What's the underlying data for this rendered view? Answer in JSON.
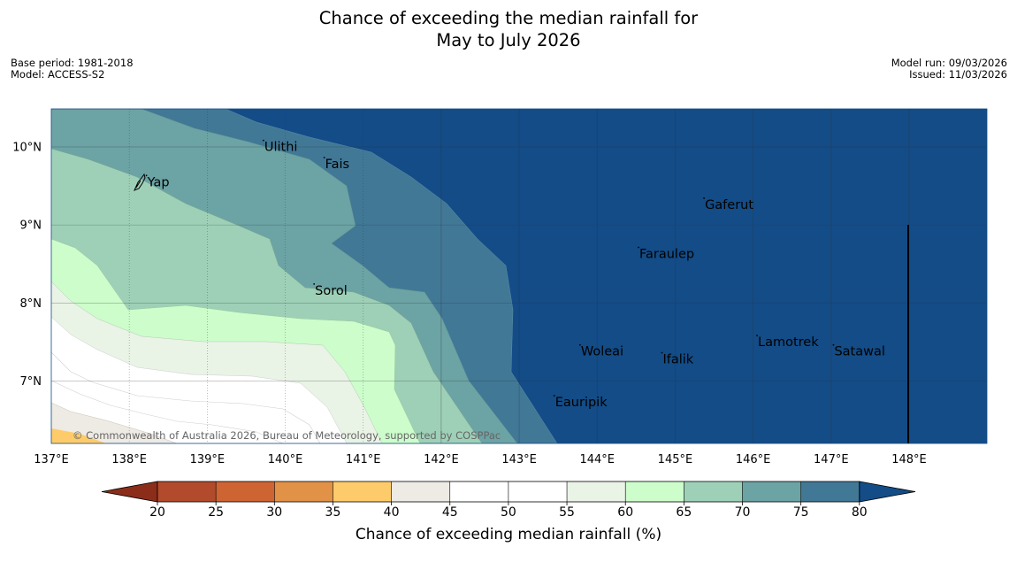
{
  "title_line1": "Chance of exceeding the median rainfall for",
  "title_line2": "May to July 2026",
  "meta_left": [
    "Base period: 1981-2018",
    "Model: ACCESS-S2"
  ],
  "meta_right": [
    "Model run: 09/03/2026",
    "Issued: 11/03/2026"
  ],
  "copyright": "© Commonwealth of Australia 2026, Bureau of Meteorology, supported by COSPPac",
  "lat_labels": [
    "10°N",
    "9°N",
    "8°N",
    "7°N"
  ],
  "lon_labels": [
    "137°E",
    "138°E",
    "139°E",
    "140°E",
    "141°E",
    "142°E",
    "143°E",
    "144°E",
    "145°E",
    "146°E",
    "147°E",
    "148°E"
  ],
  "places": [
    {
      "name": "Yap",
      "lon": 138.22,
      "lat": 9.52
    },
    {
      "name": "Ulithi",
      "lon": 139.72,
      "lat": 9.97
    },
    {
      "name": "Fais",
      "lon": 140.5,
      "lat": 9.75
    },
    {
      "name": "Gaferut",
      "lon": 145.37,
      "lat": 9.23
    },
    {
      "name": "Faraulep",
      "lon": 144.53,
      "lat": 8.6
    },
    {
      "name": "Sorol",
      "lon": 140.37,
      "lat": 8.13
    },
    {
      "name": "Lamotrek",
      "lon": 146.05,
      "lat": 7.47
    },
    {
      "name": "Woleai",
      "lon": 143.78,
      "lat": 7.35
    },
    {
      "name": "Ifalik",
      "lon": 144.83,
      "lat": 7.25
    },
    {
      "name": "Satawal",
      "lon": 147.03,
      "lat": 7.35
    },
    {
      "name": "Eauripik",
      "lon": 143.45,
      "lat": 6.7
    }
  ],
  "colorbar": {
    "ticks": [
      "20",
      "25",
      "30",
      "35",
      "40",
      "45",
      "50",
      "55",
      "60",
      "65",
      "70",
      "75",
      "80"
    ],
    "colors": [
      "#8c2d1a",
      "#b24a2c",
      "#cf6433",
      "#e19247",
      "#fdcb6a",
      "#eeeae4",
      "#ffffff",
      "#ffffff",
      "#e9f3e6",
      "#ccfdcb",
      "#9ed0b7",
      "#6ca3a4",
      "#417896",
      "#134c87"
    ],
    "label": "Chance of exceeding median rainfall (%)"
  },
  "chart_data": {
    "type": "heatmap",
    "title": "Chance of exceeding the median rainfall for May to July 2026",
    "variable": "Chance of exceeding median rainfall (%)",
    "lon_range": [
      137,
      149
    ],
    "lat_range": [
      6.2,
      10.5
    ],
    "levels": [
      20,
      25,
      30,
      35,
      40,
      45,
      50,
      55,
      60,
      65,
      70,
      75,
      80
    ]
  }
}
